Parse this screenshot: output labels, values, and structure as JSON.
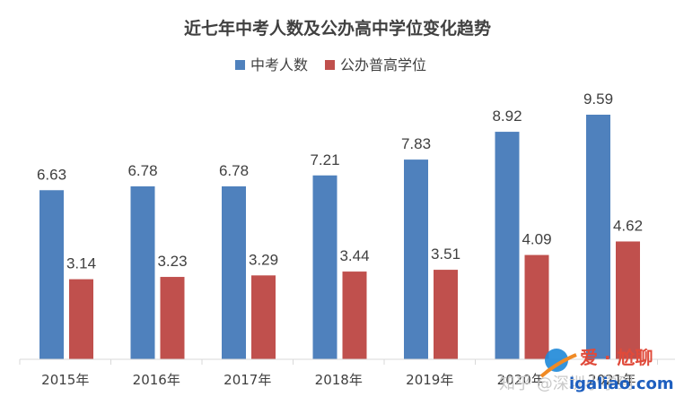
{
  "chart_data": {
    "type": "bar",
    "title": "近七年中考人数及公办高中学位变化趋势",
    "categories": [
      "2015年",
      "2016年",
      "2017年",
      "2018年",
      "2019年",
      "2020年",
      "2021年"
    ],
    "series": [
      {
        "name": "中考人数",
        "color": "#4f81bd",
        "values": [
          6.63,
          6.78,
          6.78,
          7.21,
          7.83,
          8.92,
          9.59
        ]
      },
      {
        "name": "公办普高学位",
        "color": "#c0504d",
        "values": [
          3.14,
          3.23,
          3.29,
          3.44,
          3.51,
          4.09,
          4.62
        ]
      }
    ],
    "ylim": [
      0,
      10.5
    ],
    "grid": false,
    "legend_position": "top-center",
    "xlabel": "",
    "ylabel": ""
  },
  "watermark": {
    "zhihu_text": "知乎 @深圳小学到",
    "logo_text": "爱 · 尬聊",
    "site_text": "igaliao.com"
  }
}
